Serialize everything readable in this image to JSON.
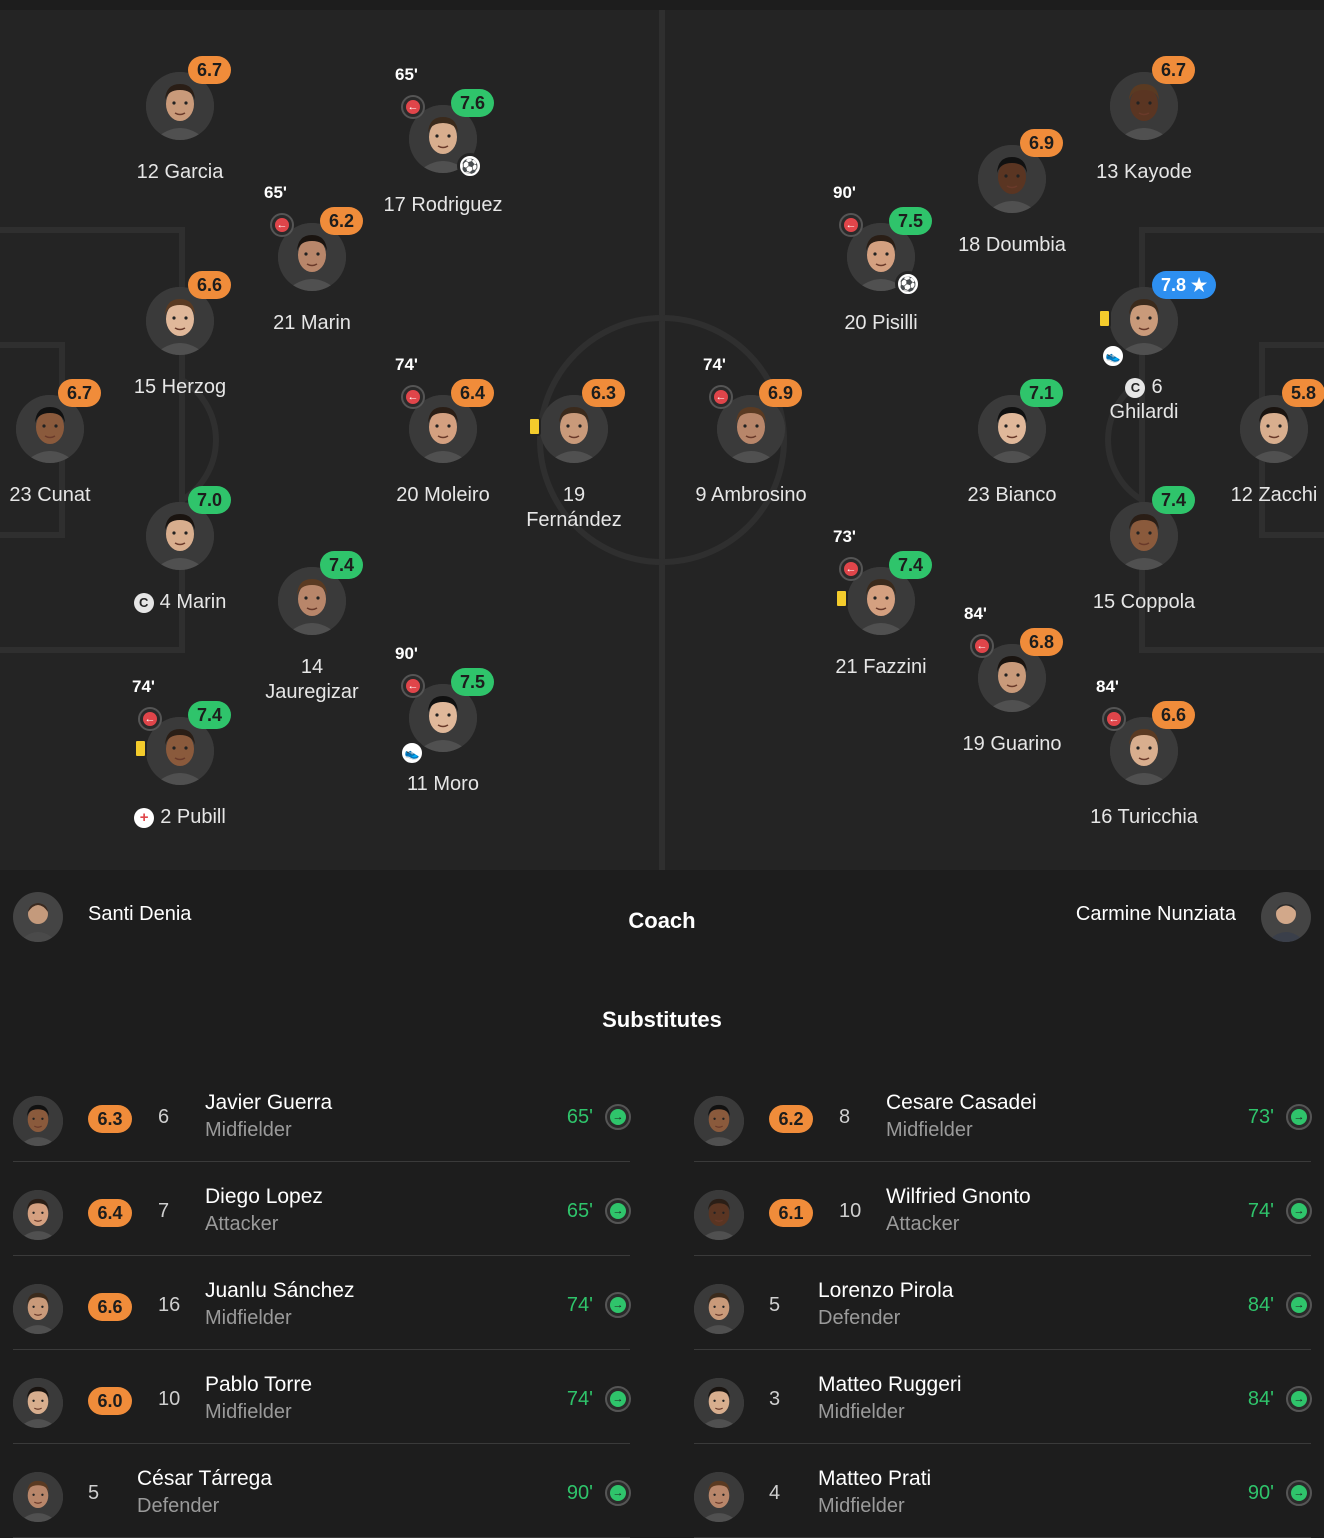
{
  "home_players": [
    {
      "id": "garcia",
      "num": "12",
      "name": "Garcia",
      "rating": "6.7",
      "rc": "orange"
    },
    {
      "id": "rodriguez",
      "num": "17",
      "name": "Rodriguez",
      "rating": "7.6",
      "rc": "green",
      "min": "65'",
      "goal": true
    },
    {
      "id": "marin21",
      "num": "21",
      "name": "Marin",
      "rating": "6.2",
      "rc": "orange",
      "min": "65'"
    },
    {
      "id": "herzog",
      "num": "15",
      "name": "Herzog",
      "rating": "6.6",
      "rc": "orange"
    },
    {
      "id": "cunat",
      "num": "23",
      "name": "Cunat",
      "rating": "6.7",
      "rc": "orange"
    },
    {
      "id": "moleiro",
      "num": "20",
      "name": "Moleiro",
      "rating": "6.4",
      "rc": "orange",
      "min": "74'"
    },
    {
      "id": "fernandez",
      "num": "19",
      "name": "Fernández",
      "rating": "6.3",
      "rc": "orange",
      "yellow": true
    },
    {
      "id": "marin4",
      "num": "4",
      "name": "Marin",
      "rating": "7.0",
      "rc": "green",
      "captain": true
    },
    {
      "id": "jauregizar",
      "num": "14",
      "name": "Jauregizar",
      "rating": "7.4",
      "rc": "green"
    },
    {
      "id": "moro",
      "num": "11",
      "name": "Moro",
      "rating": "7.5",
      "rc": "green",
      "min": "90'",
      "assist": true
    },
    {
      "id": "pubill",
      "num": "2",
      "name": "Pubill",
      "rating": "7.4",
      "rc": "green",
      "min": "74'",
      "yellow": true,
      "injury": true
    }
  ],
  "away_players": [
    {
      "id": "kayode",
      "num": "13",
      "name": "Kayode",
      "rating": "6.7",
      "rc": "orange"
    },
    {
      "id": "doumbia",
      "num": "18",
      "name": "Doumbia",
      "rating": "6.9",
      "rc": "orange"
    },
    {
      "id": "pisilli",
      "num": "20",
      "name": "Pisilli",
      "rating": "7.5",
      "rc": "green",
      "min": "90'",
      "goal": true
    },
    {
      "id": "ghilardi",
      "num": "6",
      "name": "Ghilardi",
      "rating": "7.8 ★",
      "rc": "blue",
      "yellow": true,
      "assist": true,
      "captain": true
    },
    {
      "id": "zacchi",
      "num": "12",
      "name": "Zacchi",
      "rating": "5.8",
      "rc": "orange"
    },
    {
      "id": "ambrosino",
      "num": "9",
      "name": "Ambrosino",
      "rating": "6.9",
      "rc": "orange",
      "min": "74'"
    },
    {
      "id": "bianco",
      "num": "23",
      "name": "Bianco",
      "rating": "7.1",
      "rc": "green"
    },
    {
      "id": "coppola",
      "num": "15",
      "name": "Coppola",
      "rating": "7.4",
      "rc": "green"
    },
    {
      "id": "fazzini",
      "num": "21",
      "name": "Fazzini",
      "rating": "7.4",
      "rc": "green",
      "min": "73'",
      "yellow": true
    },
    {
      "id": "guarino",
      "num": "19",
      "name": "Guarino",
      "rating": "6.8",
      "rc": "orange",
      "min": "84'"
    },
    {
      "id": "turicchia",
      "num": "16",
      "name": "Turicchia",
      "rating": "6.6",
      "rc": "orange",
      "min": "84'"
    }
  ],
  "captain_symbol": "C",
  "injury_symbol": "+",
  "goal_symbol": "⚽",
  "assist_symbol": "👟",
  "subout_symbol": "←",
  "subin_symbol": "→",
  "coach": {
    "home": "Santi Denia",
    "title": "Coach",
    "away": "Carmine Nunziata"
  },
  "subs_title": "Substitutes",
  "home_subs": [
    {
      "rating": "6.3",
      "num": "6",
      "name": "Javier Guerra",
      "pos": "Midfielder",
      "min": "65'"
    },
    {
      "rating": "6.4",
      "num": "7",
      "name": "Diego Lopez",
      "pos": "Attacker",
      "min": "65'"
    },
    {
      "rating": "6.6",
      "num": "16",
      "name": "Juanlu Sánchez",
      "pos": "Midfielder",
      "min": "74'"
    },
    {
      "rating": "6.0",
      "num": "10",
      "name": "Pablo Torre",
      "pos": "Midfielder",
      "min": "74'"
    },
    {
      "rating": "",
      "num": "5",
      "name": "César Tárrega",
      "pos": "Defender",
      "min": "90'"
    }
  ],
  "away_subs": [
    {
      "rating": "6.2",
      "num": "8",
      "name": "Cesare Casadei",
      "pos": "Midfielder",
      "min": "73'"
    },
    {
      "rating": "6.1",
      "num": "10",
      "name": "Wilfried Gnonto",
      "pos": "Attacker",
      "min": "74'"
    },
    {
      "rating": "",
      "num": "5",
      "name": "Lorenzo Pirola",
      "pos": "Defender",
      "min": "84'"
    },
    {
      "rating": "",
      "num": "3",
      "name": "Matteo Ruggeri",
      "pos": "Midfielder",
      "min": "84'"
    },
    {
      "rating": "",
      "num": "4",
      "name": "Matteo Prati",
      "pos": "Midfielder",
      "min": "90'"
    }
  ]
}
